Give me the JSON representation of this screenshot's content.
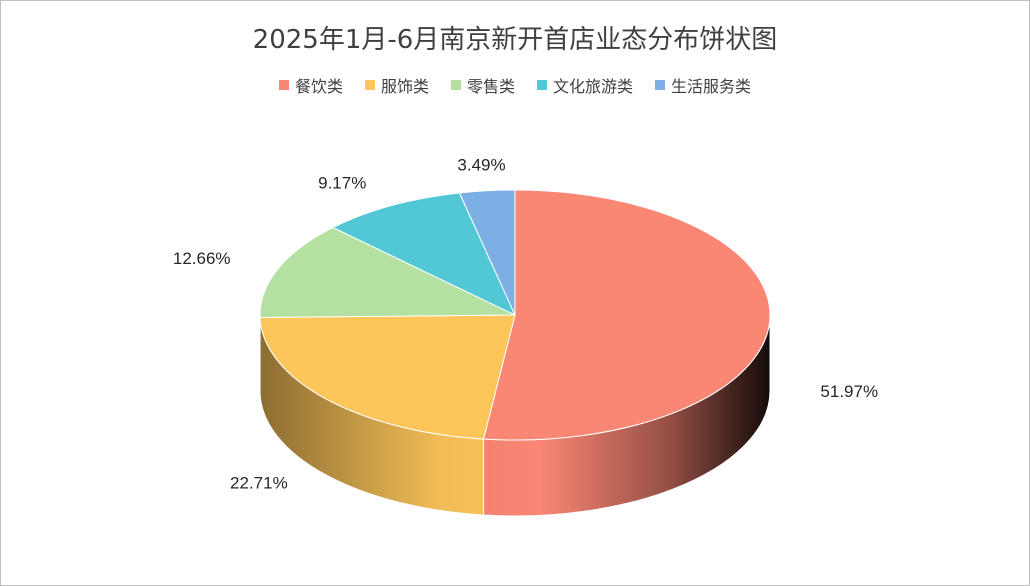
{
  "chart_data": {
    "type": "pie",
    "title": "2025年1月-6月南京新开首店业态分布饼状图",
    "categories": [
      "餐饮类",
      "服饰类",
      "零售类",
      "文化旅游类",
      "生活服务类"
    ],
    "values": [
      51.97,
      22.71,
      12.66,
      9.17,
      3.49
    ],
    "data_labels": [
      "51.97%",
      "22.71%",
      "12.66%",
      "9.17%",
      "3.49%"
    ],
    "colors": [
      "#FA8674",
      "#FEC65A",
      "#B4E1A2",
      "#52C8D6",
      "#7CB0E4"
    ],
    "legend_position": "top",
    "style": "3d"
  }
}
